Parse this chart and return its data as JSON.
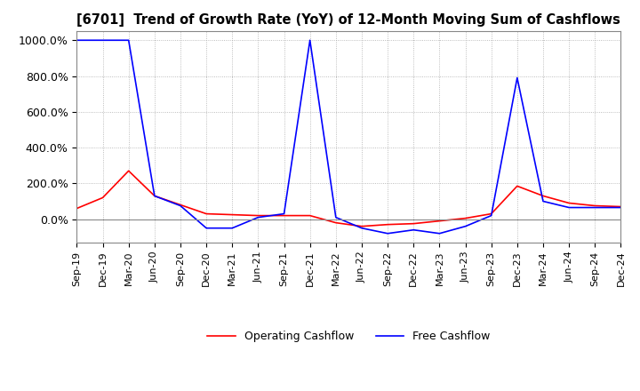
{
  "title": "[6701]  Trend of Growth Rate (YoY) of 12-Month Moving Sum of Cashflows",
  "ylim": [
    -130,
    1050
  ],
  "yticks": [
    0,
    200,
    400,
    600,
    800,
    1000
  ],
  "ytick_labels": [
    "0.0%",
    "200.0%",
    "400.0%",
    "600.0%",
    "800.0%",
    "1000.0%"
  ],
  "background_color": "#ffffff",
  "grid_color": "#aaaaaa",
  "operating_color": "#ff0000",
  "free_color": "#0000ff",
  "x_labels": [
    "Sep-19",
    "Dec-19",
    "Mar-20",
    "Jun-20",
    "Sep-20",
    "Dec-20",
    "Mar-21",
    "Jun-21",
    "Sep-21",
    "Dec-21",
    "Mar-22",
    "Jun-22",
    "Sep-22",
    "Dec-22",
    "Mar-23",
    "Jun-23",
    "Sep-23",
    "Dec-23",
    "Mar-24",
    "Jun-24",
    "Sep-24",
    "Dec-24"
  ],
  "operating_cashflow": [
    60,
    120,
    270,
    130,
    80,
    30,
    25,
    20,
    20,
    20,
    -20,
    -40,
    -30,
    -25,
    -10,
    5,
    30,
    185,
    130,
    90,
    75,
    70
  ],
  "free_cashflow": [
    1000,
    1000,
    1000,
    130,
    75,
    -50,
    -50,
    10,
    30,
    1000,
    10,
    -50,
    -80,
    -60,
    -80,
    -40,
    20,
    790,
    100,
    65,
    65,
    65
  ]
}
